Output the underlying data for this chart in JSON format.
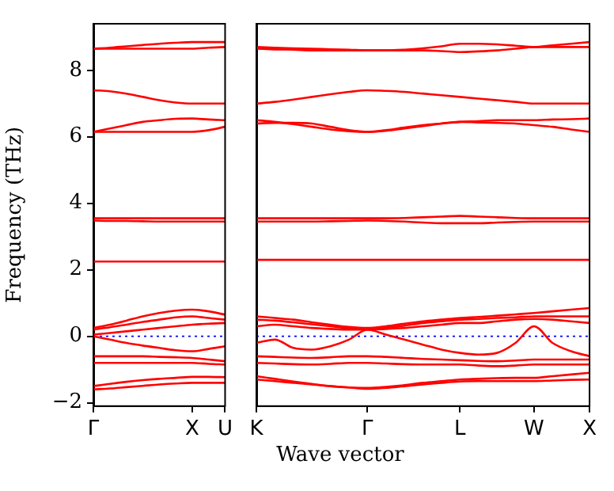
{
  "chart_data": [
    {
      "type": "line",
      "ylabel": "Frequency (THz)",
      "categories": [
        "Γ",
        null,
        null,
        null,
        null,
        null,
        "X",
        null,
        "U"
      ],
      "ylim": [
        -2.1,
        9.4
      ],
      "yticks": [
        -2,
        0,
        2,
        4,
        6,
        8
      ],
      "grid": false,
      "legend": false,
      "marker": "none",
      "line_style": "solid",
      "ref_lines": [
        {
          "axis": "y",
          "value": 0,
          "color": "#0000ff",
          "line_style": "dotted"
        }
      ],
      "series": [
        {
          "color": "#ff0000",
          "values": [
            8.65,
            8.68,
            8.72,
            8.76,
            8.8,
            8.83,
            8.85,
            8.85,
            8.85
          ]
        },
        {
          "color": "#ff0000",
          "values": [
            8.65,
            8.65,
            8.65,
            8.65,
            8.65,
            8.65,
            8.65,
            8.68,
            8.7
          ]
        },
        {
          "color": "#ff0000",
          "values": [
            7.4,
            7.37,
            7.3,
            7.2,
            7.1,
            7.03,
            7.0,
            7.0,
            7.0
          ]
        },
        {
          "color": "#ff0000",
          "values": [
            6.15,
            6.25,
            6.35,
            6.45,
            6.5,
            6.54,
            6.55,
            6.52,
            6.5
          ]
        },
        {
          "color": "#ff0000",
          "values": [
            6.15,
            6.15,
            6.15,
            6.15,
            6.15,
            6.15,
            6.15,
            6.2,
            6.3
          ]
        },
        {
          "color": "#ff0000",
          "values": [
            3.55,
            3.55,
            3.55,
            3.55,
            3.55,
            3.55,
            3.55,
            3.55,
            3.55
          ]
        },
        {
          "color": "#ff0000",
          "values": [
            3.48,
            3.47,
            3.47,
            3.46,
            3.45,
            3.45,
            3.45,
            3.45,
            3.45
          ]
        },
        {
          "color": "#ff0000",
          "values": [
            2.25,
            2.25,
            2.25,
            2.25,
            2.25,
            2.25,
            2.25,
            2.25,
            2.25
          ]
        },
        {
          "color": "#ff0000",
          "values": [
            0.25,
            0.35,
            0.47,
            0.6,
            0.7,
            0.77,
            0.8,
            0.75,
            0.65
          ]
        },
        {
          "color": "#ff0000",
          "values": [
            0.2,
            0.27,
            0.35,
            0.43,
            0.5,
            0.57,
            0.6,
            0.55,
            0.5
          ]
        },
        {
          "color": "#ff0000",
          "values": [
            0.05,
            0.1,
            0.15,
            0.2,
            0.25,
            0.3,
            0.35,
            0.38,
            0.4
          ]
        },
        {
          "color": "#ff0000",
          "values": [
            0,
            -0.1,
            -0.2,
            -0.28,
            -0.35,
            -0.42,
            -0.45,
            -0.38,
            -0.3
          ]
        },
        {
          "color": "#ff0000",
          "values": [
            -0.6,
            -0.6,
            -0.6,
            -0.6,
            -0.62,
            -0.63,
            -0.65,
            -0.7,
            -0.75
          ]
        },
        {
          "color": "#ff0000",
          "values": [
            -0.8,
            -0.8,
            -0.8,
            -0.8,
            -0.8,
            -0.8,
            -0.8,
            -0.83,
            -0.85
          ]
        },
        {
          "color": "#ff0000",
          "values": [
            -1.5,
            -1.43,
            -1.37,
            -1.32,
            -1.28,
            -1.25,
            -1.22,
            -1.22,
            -1.23
          ]
        },
        {
          "color": "#ff0000",
          "values": [
            -1.6,
            -1.57,
            -1.53,
            -1.49,
            -1.45,
            -1.42,
            -1.4,
            -1.4,
            -1.4
          ]
        }
      ]
    },
    {
      "type": "line",
      "xlabel": "Wave vector",
      "categories": [
        "K",
        null,
        null,
        null,
        null,
        null,
        "Γ",
        null,
        null,
        null,
        null,
        "L",
        null,
        null,
        null,
        "W",
        null,
        null,
        "X"
      ],
      "ylim": [
        -2.1,
        9.4
      ],
      "yticks": [
        -2,
        0,
        2,
        4,
        6,
        8
      ],
      "tick_labels": "x",
      "grid": false,
      "legend": false,
      "marker": "none",
      "line_style": "solid",
      "ref_lines": [
        {
          "axis": "y",
          "value": 0,
          "color": "#0000ff",
          "line_style": "dotted"
        }
      ],
      "series": [
        {
          "color": "#ff0000",
          "values": [
            8.7,
            8.68,
            8.66,
            8.65,
            8.63,
            8.62,
            8.6,
            8.6,
            8.62,
            8.66,
            8.72,
            8.8,
            8.8,
            8.78,
            8.74,
            8.7,
            8.75,
            8.8,
            8.85
          ]
        },
        {
          "color": "#ff0000",
          "values": [
            8.65,
            8.63,
            8.62,
            8.6,
            8.6,
            8.6,
            8.6,
            8.6,
            8.6,
            8.6,
            8.58,
            8.55,
            8.57,
            8.6,
            8.65,
            8.7,
            8.7,
            8.7,
            8.7
          ]
        },
        {
          "color": "#ff0000",
          "values": [
            7.0,
            7.05,
            7.12,
            7.2,
            7.28,
            7.35,
            7.4,
            7.38,
            7.35,
            7.3,
            7.25,
            7.2,
            7.15,
            7.1,
            7.05,
            7.0,
            7.0,
            7.0,
            7.0
          ]
        },
        {
          "color": "#ff0000",
          "values": [
            6.5,
            6.45,
            6.38,
            6.3,
            6.22,
            6.17,
            6.15,
            6.2,
            6.28,
            6.35,
            6.4,
            6.45,
            6.47,
            6.5,
            6.5,
            6.5,
            6.52,
            6.53,
            6.55
          ]
        },
        {
          "color": "#ff0000",
          "values": [
            6.4,
            6.42,
            6.42,
            6.4,
            6.3,
            6.2,
            6.15,
            6.18,
            6.25,
            6.32,
            6.4,
            6.45,
            6.43,
            6.42,
            6.4,
            6.35,
            6.3,
            6.22,
            6.15
          ]
        },
        {
          "color": "#ff0000",
          "values": [
            3.55,
            3.55,
            3.55,
            3.55,
            3.55,
            3.55,
            3.55,
            3.55,
            3.56,
            3.58,
            3.6,
            3.62,
            3.6,
            3.58,
            3.56,
            3.55,
            3.55,
            3.55,
            3.55
          ]
        },
        {
          "color": "#ff0000",
          "values": [
            3.45,
            3.45,
            3.45,
            3.45,
            3.46,
            3.47,
            3.48,
            3.47,
            3.45,
            3.42,
            3.4,
            3.4,
            3.4,
            3.42,
            3.44,
            3.45,
            3.45,
            3.45,
            3.45
          ]
        },
        {
          "color": "#ff0000",
          "values": [
            2.3,
            2.3,
            2.3,
            2.3,
            2.3,
            2.3,
            2.3,
            2.3,
            2.3,
            2.3,
            2.3,
            2.3,
            2.3,
            2.3,
            2.3,
            2.3,
            2.3,
            2.3,
            2.3
          ]
        },
        {
          "color": "#ff0000",
          "values": [
            0.6,
            0.55,
            0.5,
            0.42,
            0.35,
            0.28,
            0.25,
            0.3,
            0.38,
            0.45,
            0.5,
            0.55,
            0.58,
            0.62,
            0.66,
            0.7,
            0.75,
            0.8,
            0.85
          ]
        },
        {
          "color": "#ff0000",
          "values": [
            0.5,
            0.47,
            0.42,
            0.36,
            0.3,
            0.24,
            0.2,
            0.25,
            0.32,
            0.4,
            0.45,
            0.5,
            0.52,
            0.55,
            0.57,
            0.6,
            0.6,
            0.6,
            0.6
          ]
        },
        {
          "color": "#ff0000",
          "values": [
            0.3,
            0.35,
            0.3,
            0.25,
            0.22,
            0.2,
            0.2,
            0.22,
            0.25,
            0.3,
            0.35,
            0.4,
            0.4,
            0.45,
            0.5,
            0.52,
            0.5,
            0.45,
            0.4
          ]
        },
        {
          "color": "#ff0000",
          "values": [
            -0.2,
            -0.1,
            -0.35,
            -0.4,
            -0.3,
            -0.1,
            0.2,
            0.05,
            -0.1,
            -0.25,
            -0.4,
            -0.5,
            -0.55,
            -0.5,
            -0.2,
            0.3,
            -0.2,
            -0.45,
            -0.6
          ]
        },
        {
          "color": "#ff0000",
          "values": [
            -0.6,
            -0.62,
            -0.64,
            -0.65,
            -0.63,
            -0.6,
            -0.6,
            -0.62,
            -0.65,
            -0.68,
            -0.7,
            -0.72,
            -0.74,
            -0.75,
            -0.73,
            -0.7,
            -0.7,
            -0.7,
            -0.7
          ]
        },
        {
          "color": "#ff0000",
          "values": [
            -0.8,
            -0.82,
            -0.84,
            -0.85,
            -0.83,
            -0.8,
            -0.8,
            -0.82,
            -0.84,
            -0.85,
            -0.85,
            -0.85,
            -0.88,
            -0.9,
            -0.88,
            -0.85,
            -0.85,
            -0.85,
            -0.85
          ]
        },
        {
          "color": "#ff0000",
          "values": [
            -1.2,
            -1.28,
            -1.36,
            -1.43,
            -1.5,
            -1.54,
            -1.55,
            -1.52,
            -1.47,
            -1.4,
            -1.35,
            -1.3,
            -1.28,
            -1.26,
            -1.25,
            -1.25,
            -1.2,
            -1.15,
            -1.1
          ]
        },
        {
          "color": "#ff0000",
          "values": [
            -1.3,
            -1.35,
            -1.4,
            -1.45,
            -1.5,
            -1.54,
            -1.58,
            -1.55,
            -1.5,
            -1.45,
            -1.4,
            -1.36,
            -1.35,
            -1.35,
            -1.35,
            -1.35,
            -1.33,
            -1.31,
            -1.3
          ]
        }
      ]
    }
  ]
}
